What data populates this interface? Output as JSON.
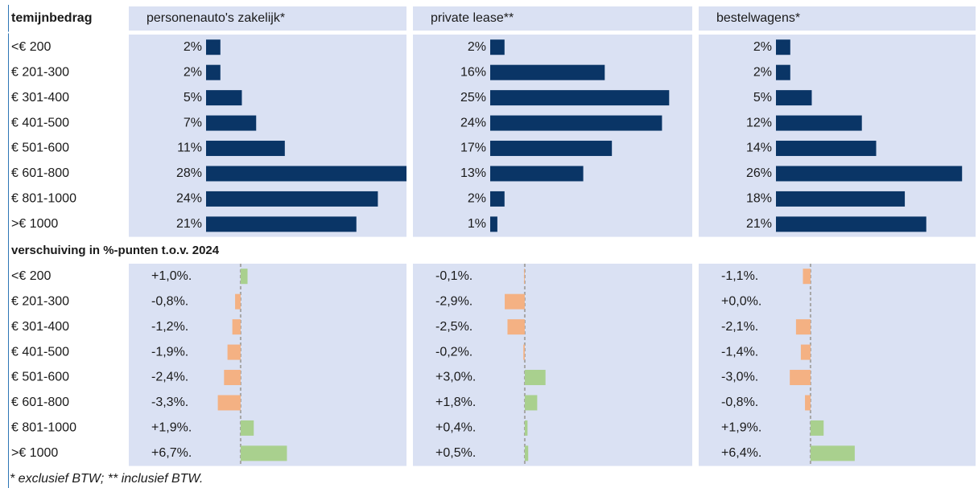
{
  "row_header": "temijnbedrag",
  "footnote": "* exclusief BTW; ** inclusief BTW.",
  "chart_data": [
    {
      "type": "bar",
      "title": "personenauto's zakelijk*",
      "categories": [
        "<€ 200",
        "€ 201-300",
        "€ 301-400",
        "€ 401-500",
        "€ 501-600",
        "€ 601-800",
        "€ 801-1000",
        ">€ 1000"
      ],
      "values": [
        2,
        2,
        5,
        7,
        11,
        28,
        24,
        21
      ],
      "value_labels": [
        "2%",
        "2%",
        "5%",
        "7%",
        "11%",
        "28%",
        "24%",
        "21%"
      ],
      "color": "#0a3566",
      "xlim": [
        0,
        28
      ]
    },
    {
      "type": "bar",
      "title": "private lease**",
      "values": [
        2,
        16,
        25,
        24,
        17,
        13,
        2,
        1
      ],
      "value_labels": [
        "2%",
        "16%",
        "25%",
        "24%",
        "17%",
        "13%",
        "2%",
        "1%"
      ],
      "color": "#0a3566",
      "xlim": [
        0,
        28
      ]
    },
    {
      "type": "bar",
      "title": "bestelwagens*",
      "values": [
        2,
        2,
        5,
        12,
        14,
        26,
        18,
        21
      ],
      "value_labels": [
        "2%",
        "2%",
        "5%",
        "12%",
        "14%",
        "26%",
        "18%",
        "21%"
      ],
      "color": "#0a3566",
      "xlim": [
        0,
        28
      ]
    },
    {
      "type": "diverging",
      "title": "verschuiving in %-punten t.o.v. 2024",
      "categories": [
        "<€ 200",
        "€ 201-300",
        "€ 301-400",
        "€ 401-500",
        "€ 501-600",
        "€ 601-800",
        "€ 801-1000",
        ">€ 1000"
      ],
      "values": [
        1.0,
        -0.8,
        -1.2,
        -1.9,
        -2.4,
        -3.3,
        1.9,
        6.7
      ],
      "value_labels": [
        "+1,0%.",
        "-0,8%.",
        "-1,2%.",
        "-1,9%.",
        "-2,4%.",
        "-3,3%.",
        "+1,9%.",
        "+6,7%."
      ],
      "positive_color": "#a9d08e",
      "negative_color": "#f4b183",
      "xlim": [
        -5,
        24
      ]
    },
    {
      "type": "diverging",
      "values": [
        -0.1,
        -2.9,
        -2.5,
        -0.2,
        3.0,
        1.8,
        0.4,
        0.5
      ],
      "value_labels": [
        "-0,1%.",
        "-2,9%.",
        "-2,5%.",
        "-0,2%.",
        "+3,0%.",
        "+1,8%.",
        "+0,4%.",
        "+0,5%."
      ],
      "positive_color": "#a9d08e",
      "negative_color": "#f4b183",
      "xlim": [
        -5,
        24
      ]
    },
    {
      "type": "diverging",
      "values": [
        -1.1,
        0.0,
        -2.1,
        -1.4,
        -3.0,
        -0.8,
        1.9,
        6.4
      ],
      "value_labels": [
        "-1,1%.",
        "+0,0%.",
        "-2,1%.",
        "-1,4%.",
        "-3,0%.",
        "-0,8%.",
        "+1,9%.",
        "+6,4%."
      ],
      "positive_color": "#a9d08e",
      "negative_color": "#f4b183",
      "xlim": [
        -5,
        24
      ]
    }
  ]
}
